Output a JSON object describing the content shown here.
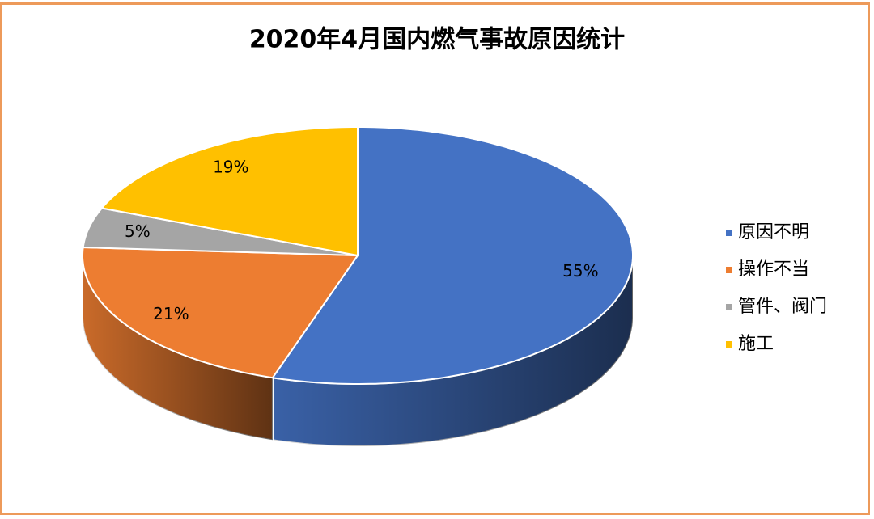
{
  "chart_data": {
    "type": "pie3d",
    "title": "2020年4月国内燃气事故原因统计",
    "categories": [
      "原因不明",
      "操作不当",
      "管件、阀门",
      "施工"
    ],
    "values": [
      55,
      21,
      5,
      19
    ],
    "value_labels": [
      "55%",
      "21%",
      "5%",
      "19%"
    ],
    "colors": [
      "#4472c4",
      "#ed7d31",
      "#a5a5a5",
      "#ffc000"
    ],
    "legend": "right"
  }
}
